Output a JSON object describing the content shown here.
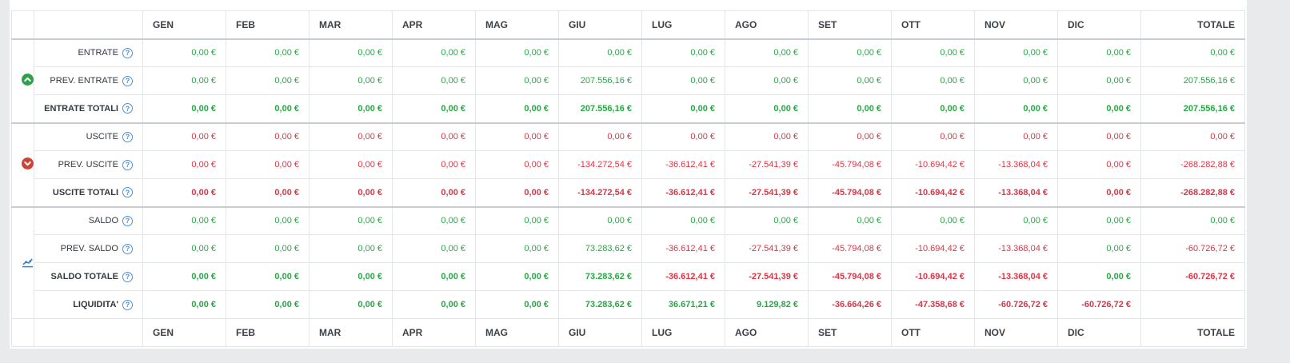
{
  "colors": {
    "page_bg": "#e9eaec",
    "card_bg": "#ffffff",
    "positive_green": "#28a745",
    "negative_red": "#dc3545",
    "entrate_icon_green": "#2fa04b",
    "uscite_icon_red": "#cb4437",
    "saldo_icon_blue": "#3b7dd8",
    "help_icon_blue": "#4a90e2"
  },
  "table": {
    "months": [
      "GEN",
      "FEB",
      "MAR",
      "APR",
      "MAG",
      "GIU",
      "LUG",
      "AGO",
      "SET",
      "OTT",
      "NOV",
      "DIC"
    ],
    "total_label": "TOTALE",
    "help_glyph": "?",
    "groups": [
      {
        "name": "entrate",
        "icon": "circle-arrow-up-icon",
        "icon_color": "#2fa04b",
        "rows": [
          {
            "label": "ENTRATE",
            "bold": false,
            "cells": [
              {
                "v": "0,00 €",
                "c": "green"
              },
              {
                "v": "0,00 €",
                "c": "green"
              },
              {
                "v": "0,00 €",
                "c": "green"
              },
              {
                "v": "0,00 €",
                "c": "green"
              },
              {
                "v": "0,00 €",
                "c": "green"
              },
              {
                "v": "0,00 €",
                "c": "green"
              },
              {
                "v": "0,00 €",
                "c": "green"
              },
              {
                "v": "0,00 €",
                "c": "green"
              },
              {
                "v": "0,00 €",
                "c": "green"
              },
              {
                "v": "0,00 €",
                "c": "green"
              },
              {
                "v": "0,00 €",
                "c": "green"
              },
              {
                "v": "0,00 €",
                "c": "green"
              },
              {
                "v": "0,00 €",
                "c": "green"
              }
            ]
          },
          {
            "label": "PREV. ENTRATE",
            "bold": false,
            "cells": [
              {
                "v": "0,00 €",
                "c": "green"
              },
              {
                "v": "0,00 €",
                "c": "green"
              },
              {
                "v": "0,00 €",
                "c": "green"
              },
              {
                "v": "0,00 €",
                "c": "green"
              },
              {
                "v": "0,00 €",
                "c": "green"
              },
              {
                "v": "207.556,16 €",
                "c": "green"
              },
              {
                "v": "0,00 €",
                "c": "green"
              },
              {
                "v": "0,00 €",
                "c": "green"
              },
              {
                "v": "0,00 €",
                "c": "green"
              },
              {
                "v": "0,00 €",
                "c": "green"
              },
              {
                "v": "0,00 €",
                "c": "green"
              },
              {
                "v": "0,00 €",
                "c": "green"
              },
              {
                "v": "207.556,16 €",
                "c": "green"
              }
            ]
          },
          {
            "label": "ENTRATE TOTALI",
            "bold": true,
            "cells": [
              {
                "v": "0,00 €",
                "c": "green"
              },
              {
                "v": "0,00 €",
                "c": "green"
              },
              {
                "v": "0,00 €",
                "c": "green"
              },
              {
                "v": "0,00 €",
                "c": "green"
              },
              {
                "v": "0,00 €",
                "c": "green"
              },
              {
                "v": "207.556,16 €",
                "c": "green"
              },
              {
                "v": "0,00 €",
                "c": "green"
              },
              {
                "v": "0,00 €",
                "c": "green"
              },
              {
                "v": "0,00 €",
                "c": "green"
              },
              {
                "v": "0,00 €",
                "c": "green"
              },
              {
                "v": "0,00 €",
                "c": "green"
              },
              {
                "v": "0,00 €",
                "c": "green"
              },
              {
                "v": "207.556,16 €",
                "c": "green"
              }
            ]
          }
        ]
      },
      {
        "name": "uscite",
        "icon": "circle-arrow-down-icon",
        "icon_color": "#cb4437",
        "rows": [
          {
            "label": "USCITE",
            "bold": false,
            "cells": [
              {
                "v": "0,00 €",
                "c": "red"
              },
              {
                "v": "0,00 €",
                "c": "red"
              },
              {
                "v": "0,00 €",
                "c": "red"
              },
              {
                "v": "0,00 €",
                "c": "red"
              },
              {
                "v": "0,00 €",
                "c": "red"
              },
              {
                "v": "0,00 €",
                "c": "red"
              },
              {
                "v": "0,00 €",
                "c": "red"
              },
              {
                "v": "0,00 €",
                "c": "red"
              },
              {
                "v": "0,00 €",
                "c": "red"
              },
              {
                "v": "0,00 €",
                "c": "red"
              },
              {
                "v": "0,00 €",
                "c": "red"
              },
              {
                "v": "0,00 €",
                "c": "red"
              },
              {
                "v": "0,00 €",
                "c": "red"
              }
            ]
          },
          {
            "label": "PREV. USCITE",
            "bold": false,
            "cells": [
              {
                "v": "0,00 €",
                "c": "red"
              },
              {
                "v": "0,00 €",
                "c": "red"
              },
              {
                "v": "0,00 €",
                "c": "red"
              },
              {
                "v": "0,00 €",
                "c": "red"
              },
              {
                "v": "0,00 €",
                "c": "red"
              },
              {
                "v": "-134.272,54 €",
                "c": "red"
              },
              {
                "v": "-36.612,41 €",
                "c": "red"
              },
              {
                "v": "-27.541,39 €",
                "c": "red"
              },
              {
                "v": "-45.794,08 €",
                "c": "red"
              },
              {
                "v": "-10.694,42 €",
                "c": "red"
              },
              {
                "v": "-13.368,04 €",
                "c": "red"
              },
              {
                "v": "0,00 €",
                "c": "red"
              },
              {
                "v": "-268.282,88 €",
                "c": "red"
              }
            ]
          },
          {
            "label": "USCITE TOTALI",
            "bold": true,
            "cells": [
              {
                "v": "0,00 €",
                "c": "red"
              },
              {
                "v": "0,00 €",
                "c": "red"
              },
              {
                "v": "0,00 €",
                "c": "red"
              },
              {
                "v": "0,00 €",
                "c": "red"
              },
              {
                "v": "0,00 €",
                "c": "red"
              },
              {
                "v": "-134.272,54 €",
                "c": "red"
              },
              {
                "v": "-36.612,41 €",
                "c": "red"
              },
              {
                "v": "-27.541,39 €",
                "c": "red"
              },
              {
                "v": "-45.794,08 €",
                "c": "red"
              },
              {
                "v": "-10.694,42 €",
                "c": "red"
              },
              {
                "v": "-13.368,04 €",
                "c": "red"
              },
              {
                "v": "0,00 €",
                "c": "red"
              },
              {
                "v": "-268.282,88 €",
                "c": "red"
              }
            ]
          }
        ]
      },
      {
        "name": "saldo",
        "icon": "line-chart-icon",
        "icon_color": "#3b7dd8",
        "rows": [
          {
            "label": "SALDO",
            "bold": false,
            "cells": [
              {
                "v": "0,00 €",
                "c": "green"
              },
              {
                "v": "0,00 €",
                "c": "green"
              },
              {
                "v": "0,00 €",
                "c": "green"
              },
              {
                "v": "0,00 €",
                "c": "green"
              },
              {
                "v": "0,00 €",
                "c": "green"
              },
              {
                "v": "0,00 €",
                "c": "green"
              },
              {
                "v": "0,00 €",
                "c": "green"
              },
              {
                "v": "0,00 €",
                "c": "green"
              },
              {
                "v": "0,00 €",
                "c": "green"
              },
              {
                "v": "0,00 €",
                "c": "green"
              },
              {
                "v": "0,00 €",
                "c": "green"
              },
              {
                "v": "0,00 €",
                "c": "green"
              },
              {
                "v": "0,00 €",
                "c": "green"
              }
            ]
          },
          {
            "label": "PREV. SALDO",
            "bold": false,
            "cells": [
              {
                "v": "0,00 €",
                "c": "green"
              },
              {
                "v": "0,00 €",
                "c": "green"
              },
              {
                "v": "0,00 €",
                "c": "green"
              },
              {
                "v": "0,00 €",
                "c": "green"
              },
              {
                "v": "0,00 €",
                "c": "green"
              },
              {
                "v": "73.283,62 €",
                "c": "green"
              },
              {
                "v": "-36.612,41 €",
                "c": "red"
              },
              {
                "v": "-27.541,39 €",
                "c": "red"
              },
              {
                "v": "-45.794,08 €",
                "c": "red"
              },
              {
                "v": "-10.694,42 €",
                "c": "red"
              },
              {
                "v": "-13.368,04 €",
                "c": "red"
              },
              {
                "v": "0,00 €",
                "c": "green"
              },
              {
                "v": "-60.726,72 €",
                "c": "red"
              }
            ]
          },
          {
            "label": "SALDO TOTALE",
            "bold": true,
            "cells": [
              {
                "v": "0,00 €",
                "c": "green"
              },
              {
                "v": "0,00 €",
                "c": "green"
              },
              {
                "v": "0,00 €",
                "c": "green"
              },
              {
                "v": "0,00 €",
                "c": "green"
              },
              {
                "v": "0,00 €",
                "c": "green"
              },
              {
                "v": "73.283,62 €",
                "c": "green"
              },
              {
                "v": "-36.612,41 €",
                "c": "red"
              },
              {
                "v": "-27.541,39 €",
                "c": "red"
              },
              {
                "v": "-45.794,08 €",
                "c": "red"
              },
              {
                "v": "-10.694,42 €",
                "c": "red"
              },
              {
                "v": "-13.368,04 €",
                "c": "red"
              },
              {
                "v": "0,00 €",
                "c": "green"
              },
              {
                "v": "-60.726,72 €",
                "c": "red"
              }
            ]
          },
          {
            "label": "LIQUIDITA'",
            "bold": true,
            "cells": [
              {
                "v": "0,00 €",
                "c": "green"
              },
              {
                "v": "0,00 €",
                "c": "green"
              },
              {
                "v": "0,00 €",
                "c": "green"
              },
              {
                "v": "0,00 €",
                "c": "green"
              },
              {
                "v": "0,00 €",
                "c": "green"
              },
              {
                "v": "73.283,62 €",
                "c": "green"
              },
              {
                "v": "36.671,21 €",
                "c": "green"
              },
              {
                "v": "9.129,82 €",
                "c": "green"
              },
              {
                "v": "-36.664,26 €",
                "c": "red"
              },
              {
                "v": "-47.358,68 €",
                "c": "red"
              },
              {
                "v": "-60.726,72 €",
                "c": "red"
              },
              {
                "v": "-60.726,72 €",
                "c": "red"
              },
              {
                "v": "",
                "c": ""
              }
            ]
          }
        ]
      }
    ]
  }
}
